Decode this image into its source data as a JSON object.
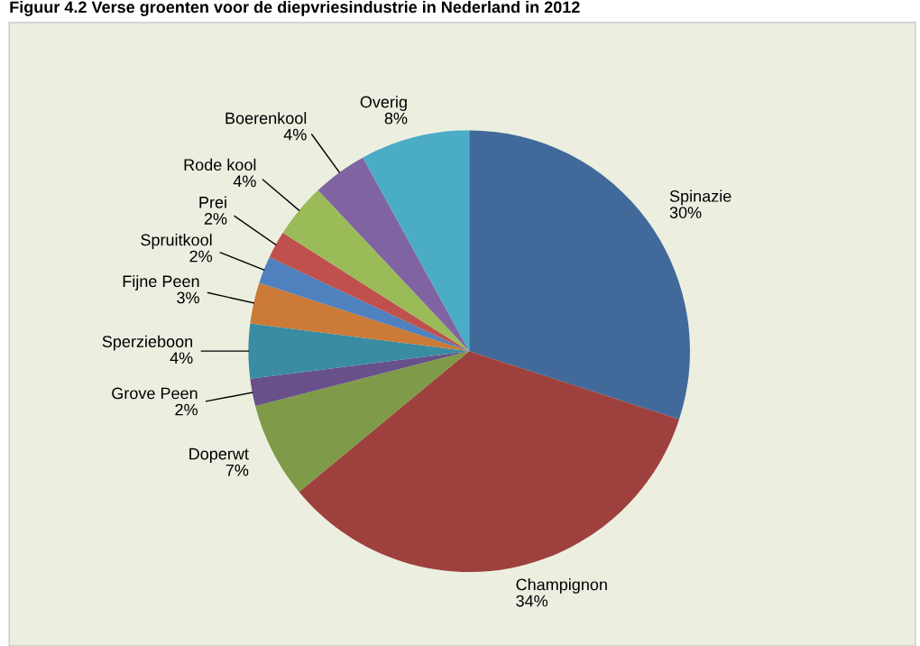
{
  "chart_data": {
    "type": "pie",
    "title": "Figuur 4.2 Verse groenten voor de diepvriesindustrie in Nederland in 2012",
    "categories": [
      "Spinazie",
      "Champignon",
      "Doperwt",
      "Grove Peen",
      "Sperzieboon",
      "Fijne Peen",
      "Spruitkool",
      "Prei",
      "Rode kool",
      "Boerenkool",
      "Overig"
    ],
    "values": [
      30,
      34,
      7,
      2,
      4,
      3,
      2,
      2,
      4,
      4,
      8
    ],
    "value_labels": [
      "30%",
      "34%",
      "7%",
      "2%",
      "4%",
      "3%",
      "2%",
      "2%",
      "4%",
      "4%",
      "8%"
    ],
    "colors": [
      "#416a9b",
      "#9e413e",
      "#7f9a48",
      "#68508a",
      "#3a8ca3",
      "#cb7a37",
      "#4e81bd",
      "#c0504d",
      "#9bbb59",
      "#8064a2",
      "#4bacc6"
    ],
    "legend": false
  }
}
